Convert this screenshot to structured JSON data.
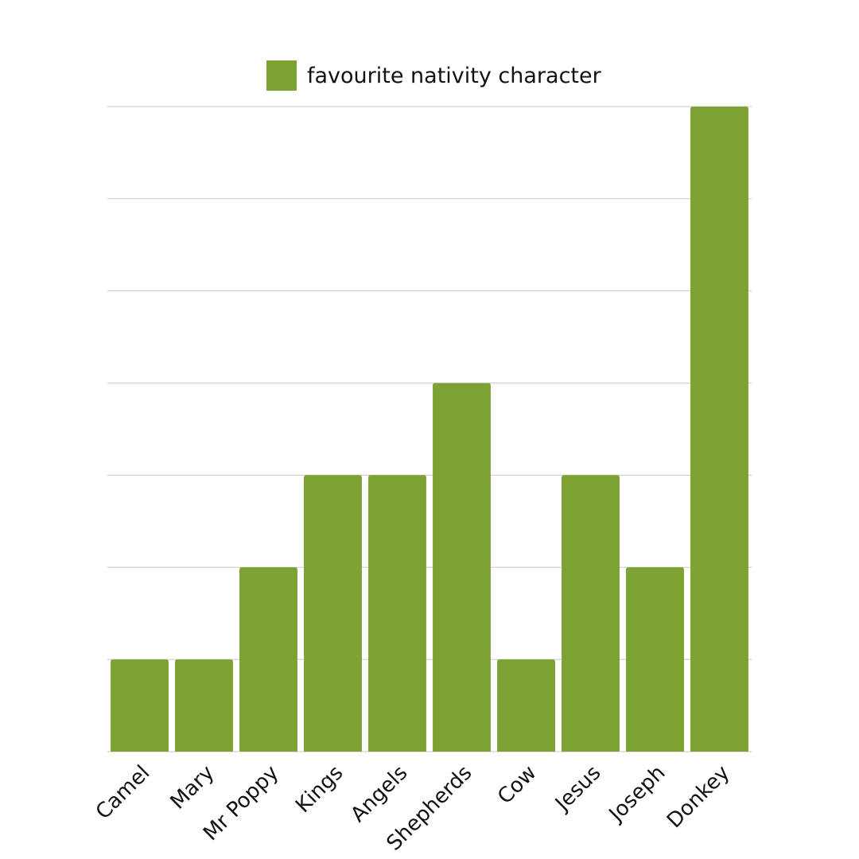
{
  "chart_data": {
    "type": "bar",
    "categories": [
      "Camel",
      "Mary",
      "Mr Poppy",
      "Kings",
      "Angels",
      "Shepherds",
      "Cow",
      "Jesus",
      "Joseph",
      "Donkey"
    ],
    "series": [
      {
        "name": "favourite nativity character",
        "color": "#7ba233",
        "values": [
          1,
          1,
          2,
          3,
          3,
          4,
          1,
          3,
          2,
          7
        ]
      }
    ],
    "ylim": [
      0,
      7
    ],
    "yticks": [
      0,
      1,
      2,
      3,
      4,
      5,
      6,
      7
    ],
    "show_ytick_labels": false,
    "grid": true,
    "legend": "top"
  }
}
